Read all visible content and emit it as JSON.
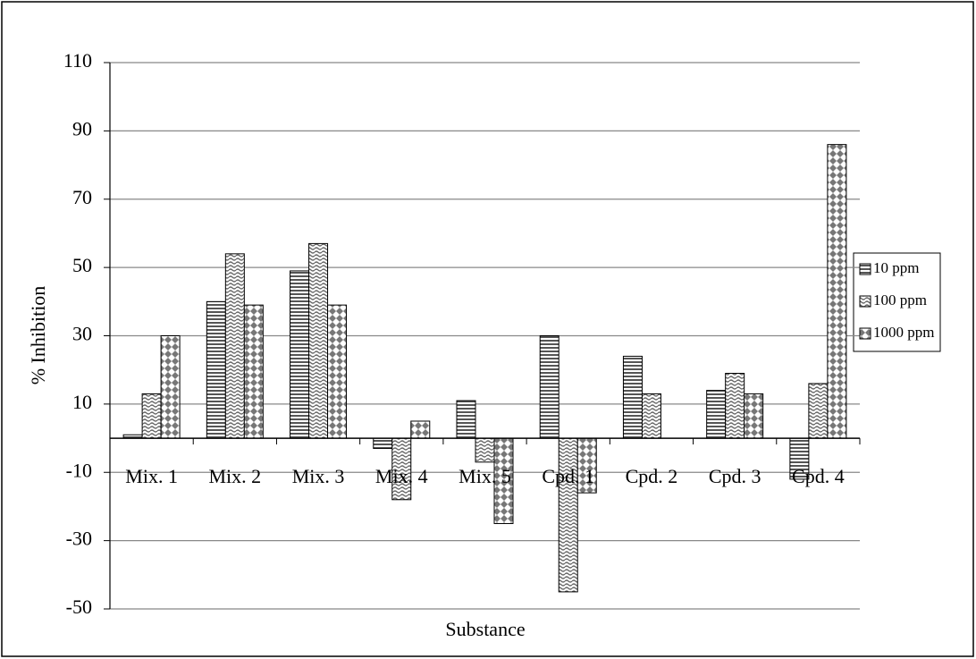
{
  "chart_data": {
    "type": "bar",
    "x_label": "Substance",
    "y_label": "% Inhibition",
    "categories": [
      "Mix. 1",
      "Mix. 2",
      "Mix. 3",
      "Mix. 4",
      "Mix. 5",
      "Cpd. 1",
      "Cpd. 2",
      "Cpd. 3",
      "Cpd. 4"
    ],
    "series": [
      {
        "name": "10 ppm",
        "color": "#555555",
        "pattern": "horizontal",
        "values": [
          1,
          40,
          49,
          -3,
          11,
          30,
          24,
          14,
          -12
        ]
      },
      {
        "name": "100 ppm",
        "color": "#666666",
        "pattern": "wave",
        "values": [
          13,
          54,
          57,
          -18,
          -7,
          -45,
          13,
          19,
          16
        ]
      },
      {
        "name": "1000 ppm",
        "color": "#777777",
        "pattern": "diamond",
        "values": [
          30,
          39,
          39,
          5,
          -25,
          -16,
          null,
          13,
          86
        ]
      }
    ],
    "ylim": [
      -50,
      110
    ],
    "yticks": [
      -50,
      -30,
      -10,
      10,
      30,
      50,
      70,
      90,
      110
    ],
    "grid": true,
    "legend": "right"
  }
}
